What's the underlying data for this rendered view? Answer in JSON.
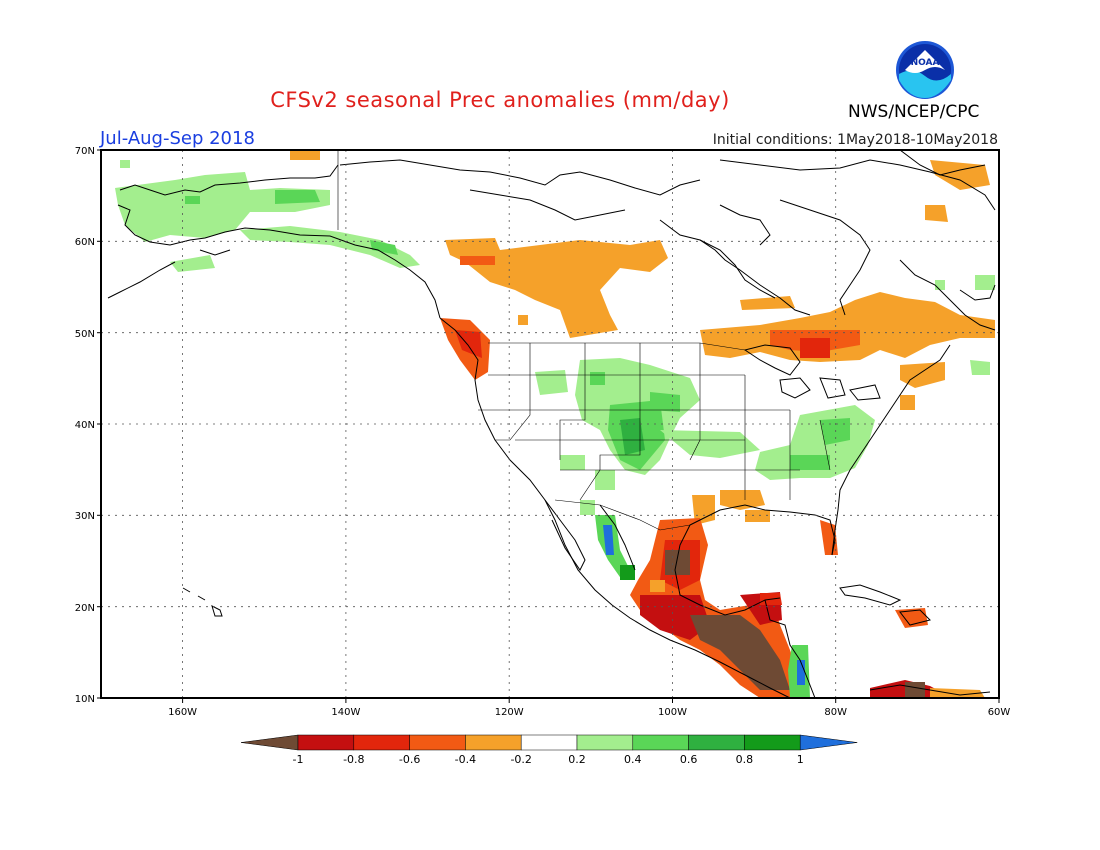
{
  "header": {
    "title": "CFSv2 seasonal Prec anomalies (mm/day)",
    "season": "Jul-Aug-Sep 2018",
    "initial_conditions": "Initial conditions: 1May2018-10May2018",
    "organization": "NWS/NCEP/CPC",
    "logo_text": "NOAA"
  },
  "map": {
    "lat_labels": [
      "70N",
      "60N",
      "50N",
      "40N",
      "30N",
      "20N",
      "10N"
    ],
    "lon_labels": [
      "160W",
      "140W",
      "120W",
      "100W",
      "80W",
      "60W"
    ],
    "lat_range": [
      10,
      70
    ],
    "lon_range": [
      -170,
      -60
    ]
  },
  "colorbar": {
    "labels": [
      "-1",
      "-0.8",
      "-0.6",
      "-0.4",
      "-0.2",
      "0.2",
      "0.4",
      "0.6",
      "0.8",
      "1"
    ],
    "colors": [
      "#6e4a34",
      "#c40f10",
      "#e2260c",
      "#f25a14",
      "#f5a12a",
      "#ffffff",
      "#a3ee8e",
      "#5ad657",
      "#2fb040",
      "#139b1a",
      "#1f6fdc"
    ]
  }
}
